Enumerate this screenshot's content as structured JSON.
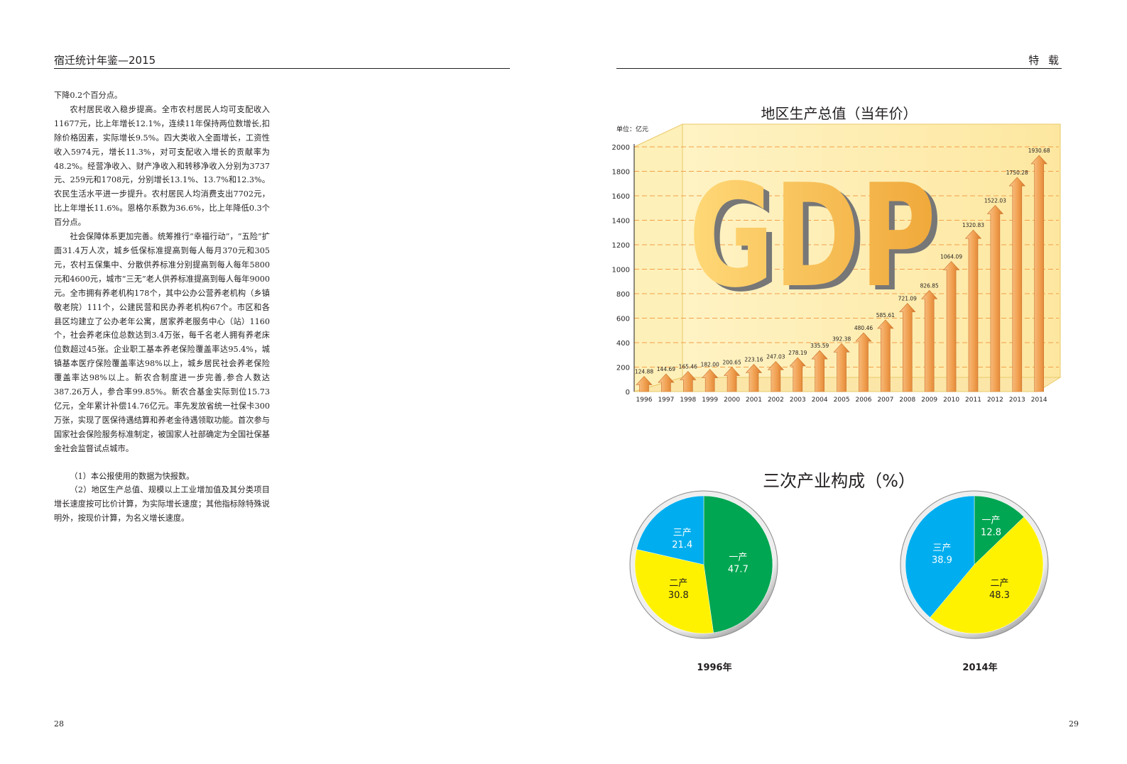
{
  "header": {
    "left_title": "宿迁统计年鉴—2015",
    "right_title": "特 载"
  },
  "left_page": {
    "paragraphs": [
      "下降0.2个百分点。",
      "农村居民收入稳步提高。全市农村居民人均可支配收入11677元，比上年增长12.1%，连续11年保持两位数增长,扣除价格因素，实际增长9.5%。四大类收入全面增长，工资性收入5974元，增长11.3%，对可支配收入增长的贡献率为48.2%。经营净收入、财产净收入和转移净收入分别为3737元、259元和1708元，分别增长13.1%、13.7%和12.3%。农民生活水平进一步提升。农村居民人均消费支出7702元，比上年增长11.6%。恩格尔系数为36.6%，比上年降低0.3个百分点。",
      "社会保障体系更加完善。统筹推行“幸福行动”，“五险”扩面31.4万人次，城乡低保标准提高到每人每月370元和305元，农村五保集中、分散供养标准分别提高到每人每年5800元和4600元，城市“三无”老人供养标准提高到每人每年9000元。全市拥有养老机构178个，其中公办公营养老机构（乡镇敬老院）111个，公建民营和民办养老机构67个。市区和各县区均建立了公办老年公寓，居家养老服务中心（站）1160个，社会养老床位总数达到3.4万张，每千名老人拥有养老床位数超过45张。企业职工基本养老保险覆盖率达95.4%，城镇基本医疗保险覆盖率达98%以上，城乡居民社会养老保险覆盖率达98%以上。新农合制度进一步完善,参合人数达387.26万人，参合率99.85%。新农合基金实际到位15.73亿元，全年累计补偿14.76亿元。率先发放省统一社保卡300万张，实现了医保待遇结算和养老金待遇领取功能。首次参与国家社会保险服务标准制定，被国家人社部确定为全国社保基金社会监督试点城市。"
    ],
    "notes": [
      "（1）本公报使用的数据为快报数。",
      "（2）地区生产总值、规模以上工业增加值及其分类项目增长速度按可比价计算，为实际增长速度；其他指标除特殊说明外，按现价计算，为名义增长速度。"
    ],
    "page_number": "28"
  },
  "right_page": {
    "page_number": "29"
  },
  "colors": {
    "arrow": "#f0a050",
    "arrow_dark": "#d9782a",
    "gdp_letter": "#f4b64a",
    "pie_green": "#00a651",
    "pie_yellow": "#fff200",
    "pie_blue": "#00aeef",
    "pie_rim": "#9a9a9a"
  },
  "chart_data": [
    {
      "type": "bar",
      "title": "地区生产总值（当年价）",
      "unit_label": "单位：亿元",
      "watermark": "GDP",
      "categories": [
        "1996",
        "1997",
        "1998",
        "1999",
        "2000",
        "2001",
        "2002",
        "2003",
        "2004",
        "2005",
        "2006",
        "2007",
        "2008",
        "2009",
        "2010",
        "2011",
        "2012",
        "2013",
        "2014"
      ],
      "values": [
        124.88,
        144.69,
        165.46,
        182.0,
        200.65,
        223.16,
        247.03,
        278.19,
        335.59,
        392.38,
        480.46,
        585.61,
        721.09,
        826.85,
        1064.09,
        1320.83,
        1522.03,
        1750.28,
        1930.68
      ],
      "value_labels": [
        "124.88",
        "144.69",
        "165.46",
        "182.00",
        "200.65",
        "223.16",
        "247.03",
        "278.19",
        "335.59",
        "392.38",
        "480.46",
        "585.61",
        "721.09",
        "826.85",
        "1064.09",
        "1320.83",
        "1522.03",
        "1750.28",
        "1930.68"
      ],
      "yticks": [
        "0",
        "200",
        "400",
        "600",
        "800",
        "1000",
        "1200",
        "1400",
        "1600",
        "1800",
        "2000"
      ],
      "ylim": [
        0,
        2000
      ],
      "grid": true
    },
    {
      "type": "pie",
      "title": "三次产业构成（%）",
      "charts": [
        {
          "year_label": "1996年",
          "slices": [
            {
              "name": "一产",
              "value": 47.7,
              "label": "47.7",
              "color": "#00a651"
            },
            {
              "name": "二产",
              "value": 30.8,
              "label": "30.8",
              "color": "#fff200"
            },
            {
              "name": "三产",
              "value": 21.4,
              "label": "21.4",
              "color": "#00aeef"
            }
          ]
        },
        {
          "year_label": "2014年",
          "slices": [
            {
              "name": "一产",
              "value": 12.8,
              "label": "12.8",
              "color": "#00a651"
            },
            {
              "name": "二产",
              "value": 48.3,
              "label": "48.3",
              "color": "#fff200"
            },
            {
              "name": "三产",
              "value": 38.9,
              "label": "38.9",
              "color": "#00aeef"
            }
          ]
        }
      ]
    }
  ]
}
